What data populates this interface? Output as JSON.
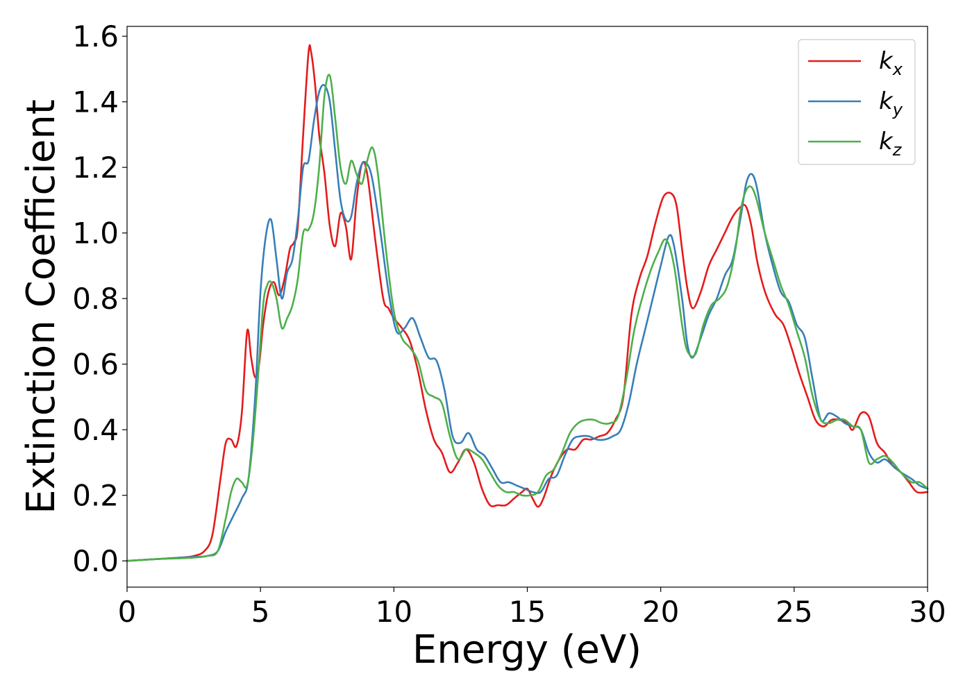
{
  "chart_data": {
    "type": "line",
    "title": "",
    "xlabel": "Energy (eV)",
    "ylabel": "Extinction Coefficient",
    "xlim": [
      0,
      30
    ],
    "ylim": [
      -0.08,
      1.63
    ],
    "xticks": [
      0,
      5,
      10,
      15,
      20,
      25,
      30
    ],
    "yticks": [
      0.0,
      0.2,
      0.4,
      0.6,
      0.8,
      1.0,
      1.2,
      1.4,
      1.6
    ],
    "yticklabels": [
      "0.0",
      "0.2",
      "0.4",
      "0.6",
      "0.8",
      "1.0",
      "1.2",
      "1.4",
      "1.6"
    ],
    "grid": false,
    "legend_position": "top-right",
    "series": [
      {
        "name": "k_x",
        "legend_base": "k",
        "legend_sub": "x",
        "color": "#e41a1c",
        "x": [
          0,
          1,
          2,
          2.5,
          2.9,
          3.2,
          3.5,
          3.7,
          3.9,
          4.1,
          4.3,
          4.5,
          4.65,
          4.8,
          4.95,
          5.1,
          5.3,
          5.5,
          5.7,
          5.9,
          6.1,
          6.25,
          6.4,
          6.6,
          6.8,
          6.9,
          7.05,
          7.2,
          7.4,
          7.6,
          7.8,
          8.0,
          8.2,
          8.4,
          8.6,
          8.8,
          9.0,
          9.3,
          9.6,
          9.8,
          10.0,
          10.3,
          10.6,
          10.9,
          11.2,
          11.5,
          11.8,
          12.1,
          12.4,
          12.7,
          13.0,
          13.3,
          13.6,
          13.9,
          14.2,
          14.5,
          14.8,
          15.0,
          15.2,
          15.4,
          15.6,
          15.9,
          16.2,
          16.5,
          16.8,
          17.1,
          17.4,
          17.7,
          18.0,
          18.3,
          18.6,
          18.9,
          19.2,
          19.5,
          19.8,
          20.1,
          20.4,
          20.6,
          20.8,
          21.0,
          21.2,
          21.5,
          21.8,
          22.1,
          22.4,
          22.7,
          23.0,
          23.2,
          23.4,
          23.6,
          23.8,
          24.0,
          24.3,
          24.6,
          24.9,
          25.2,
          25.5,
          25.8,
          26.1,
          26.4,
          26.7,
          27.0,
          27.2,
          27.5,
          27.8,
          28.1,
          28.4,
          28.7,
          29.0,
          29.3,
          29.6,
          30.0
        ],
        "y": [
          0,
          0.005,
          0.01,
          0.015,
          0.03,
          0.08,
          0.25,
          0.36,
          0.37,
          0.35,
          0.45,
          0.7,
          0.62,
          0.56,
          0.6,
          0.72,
          0.82,
          0.85,
          0.81,
          0.86,
          0.95,
          0.97,
          1.02,
          1.3,
          1.55,
          1.55,
          1.45,
          1.3,
          1.18,
          1.02,
          0.96,
          1.06,
          1.02,
          0.92,
          1.1,
          1.21,
          1.18,
          0.98,
          0.8,
          0.77,
          0.74,
          0.71,
          0.67,
          0.58,
          0.46,
          0.37,
          0.33,
          0.27,
          0.3,
          0.34,
          0.3,
          0.22,
          0.17,
          0.17,
          0.17,
          0.19,
          0.21,
          0.22,
          0.19,
          0.165,
          0.19,
          0.26,
          0.31,
          0.34,
          0.34,
          0.37,
          0.37,
          0.38,
          0.39,
          0.43,
          0.5,
          0.75,
          0.86,
          0.93,
          1.03,
          1.11,
          1.12,
          1.08,
          0.95,
          0.83,
          0.77,
          0.82,
          0.9,
          0.95,
          1.0,
          1.05,
          1.08,
          1.08,
          1.02,
          0.92,
          0.85,
          0.8,
          0.75,
          0.72,
          0.65,
          0.57,
          0.5,
          0.43,
          0.41,
          0.43,
          0.43,
          0.42,
          0.4,
          0.45,
          0.44,
          0.36,
          0.33,
          0.29,
          0.27,
          0.24,
          0.21,
          0.21
        ]
      },
      {
        "name": "k_y",
        "legend_base": "k",
        "legend_sub": "y",
        "color": "#377eb8",
        "x": [
          0,
          1,
          2,
          2.5,
          3.0,
          3.4,
          3.7,
          4.0,
          4.3,
          4.55,
          4.8,
          5.0,
          5.2,
          5.4,
          5.6,
          5.8,
          6.0,
          6.2,
          6.4,
          6.6,
          6.8,
          7.0,
          7.2,
          7.4,
          7.6,
          7.8,
          8.0,
          8.2,
          8.4,
          8.6,
          8.8,
          9.0,
          9.2,
          9.5,
          9.8,
          10.1,
          10.4,
          10.7,
          11.0,
          11.3,
          11.6,
          11.9,
          12.2,
          12.5,
          12.8,
          13.1,
          13.4,
          13.7,
          14.0,
          14.3,
          14.6,
          14.9,
          15.2,
          15.5,
          15.8,
          16.1,
          16.4,
          16.7,
          17.0,
          17.3,
          17.6,
          17.9,
          18.2,
          18.5,
          18.8,
          19.1,
          19.4,
          19.7,
          20.0,
          20.3,
          20.5,
          20.8,
          21.0,
          21.2,
          21.5,
          21.8,
          22.1,
          22.4,
          22.7,
          23.0,
          23.2,
          23.4,
          23.6,
          23.9,
          24.2,
          24.5,
          24.8,
          25.1,
          25.4,
          25.7,
          26.0,
          26.3,
          26.6,
          26.9,
          27.2,
          27.5,
          27.8,
          28.1,
          28.4,
          28.7,
          29.0,
          29.4,
          29.7,
          30.0
        ],
        "y": [
          0,
          0.005,
          0.01,
          0.012,
          0.015,
          0.03,
          0.09,
          0.14,
          0.19,
          0.25,
          0.5,
          0.82,
          0.99,
          1.04,
          0.92,
          0.8,
          0.88,
          0.92,
          1.04,
          1.2,
          1.22,
          1.34,
          1.43,
          1.45,
          1.4,
          1.25,
          1.1,
          1.04,
          1.05,
          1.15,
          1.21,
          1.21,
          1.16,
          1.0,
          0.82,
          0.7,
          0.71,
          0.74,
          0.68,
          0.62,
          0.61,
          0.52,
          0.38,
          0.36,
          0.39,
          0.34,
          0.32,
          0.28,
          0.24,
          0.24,
          0.23,
          0.22,
          0.21,
          0.21,
          0.25,
          0.26,
          0.32,
          0.37,
          0.38,
          0.38,
          0.37,
          0.37,
          0.38,
          0.4,
          0.48,
          0.6,
          0.7,
          0.8,
          0.9,
          0.99,
          0.96,
          0.8,
          0.66,
          0.62,
          0.68,
          0.75,
          0.8,
          0.87,
          0.92,
          1.05,
          1.15,
          1.18,
          1.14,
          1.0,
          0.9,
          0.82,
          0.79,
          0.72,
          0.68,
          0.55,
          0.43,
          0.45,
          0.44,
          0.42,
          0.41,
          0.4,
          0.33,
          0.3,
          0.31,
          0.29,
          0.27,
          0.25,
          0.23,
          0.22
        ]
      },
      {
        "name": "k_z",
        "legend_base": "k",
        "legend_sub": "z",
        "color": "#4daf4a",
        "x": [
          0,
          1,
          2,
          2.5,
          3.0,
          3.4,
          3.7,
          3.9,
          4.1,
          4.3,
          4.5,
          4.7,
          4.9,
          5.1,
          5.25,
          5.4,
          5.6,
          5.8,
          6.0,
          6.2,
          6.4,
          6.6,
          6.8,
          7.0,
          7.2,
          7.4,
          7.6,
          7.8,
          8.0,
          8.2,
          8.4,
          8.6,
          8.8,
          9.0,
          9.2,
          9.4,
          9.7,
          10.0,
          10.3,
          10.6,
          10.9,
          11.2,
          11.5,
          11.8,
          12.1,
          12.4,
          12.7,
          13.0,
          13.3,
          13.6,
          13.9,
          14.2,
          14.5,
          14.8,
          15.1,
          15.4,
          15.7,
          16.0,
          16.3,
          16.6,
          16.9,
          17.2,
          17.5,
          17.8,
          18.1,
          18.4,
          18.7,
          19.0,
          19.3,
          19.6,
          19.9,
          20.2,
          20.5,
          20.8,
          21.0,
          21.3,
          21.6,
          21.9,
          22.2,
          22.5,
          22.8,
          23.0,
          23.2,
          23.4,
          23.6,
          23.9,
          24.2,
          24.5,
          24.8,
          25.1,
          25.4,
          25.7,
          26.0,
          26.3,
          26.6,
          26.9,
          27.2,
          27.5,
          27.8,
          28.1,
          28.4,
          28.7,
          29.0,
          29.4,
          29.7,
          30.0
        ],
        "y": [
          0,
          0.005,
          0.008,
          0.01,
          0.015,
          0.03,
          0.13,
          0.21,
          0.25,
          0.24,
          0.23,
          0.35,
          0.55,
          0.78,
          0.84,
          0.85,
          0.8,
          0.71,
          0.74,
          0.78,
          0.86,
          1.0,
          1.01,
          1.06,
          1.2,
          1.42,
          1.48,
          1.35,
          1.2,
          1.15,
          1.22,
          1.18,
          1.15,
          1.22,
          1.26,
          1.18,
          0.95,
          0.76,
          0.68,
          0.65,
          0.61,
          0.52,
          0.5,
          0.48,
          0.38,
          0.31,
          0.34,
          0.33,
          0.31,
          0.27,
          0.23,
          0.21,
          0.21,
          0.2,
          0.2,
          0.21,
          0.26,
          0.28,
          0.33,
          0.39,
          0.42,
          0.43,
          0.43,
          0.42,
          0.42,
          0.44,
          0.55,
          0.7,
          0.8,
          0.88,
          0.94,
          0.98,
          0.9,
          0.72,
          0.64,
          0.63,
          0.72,
          0.78,
          0.8,
          0.84,
          0.95,
          1.07,
          1.13,
          1.14,
          1.1,
          1.0,
          0.92,
          0.84,
          0.78,
          0.7,
          0.62,
          0.5,
          0.43,
          0.42,
          0.43,
          0.43,
          0.41,
          0.4,
          0.3,
          0.31,
          0.32,
          0.3,
          0.27,
          0.24,
          0.24,
          0.22
        ]
      }
    ]
  }
}
